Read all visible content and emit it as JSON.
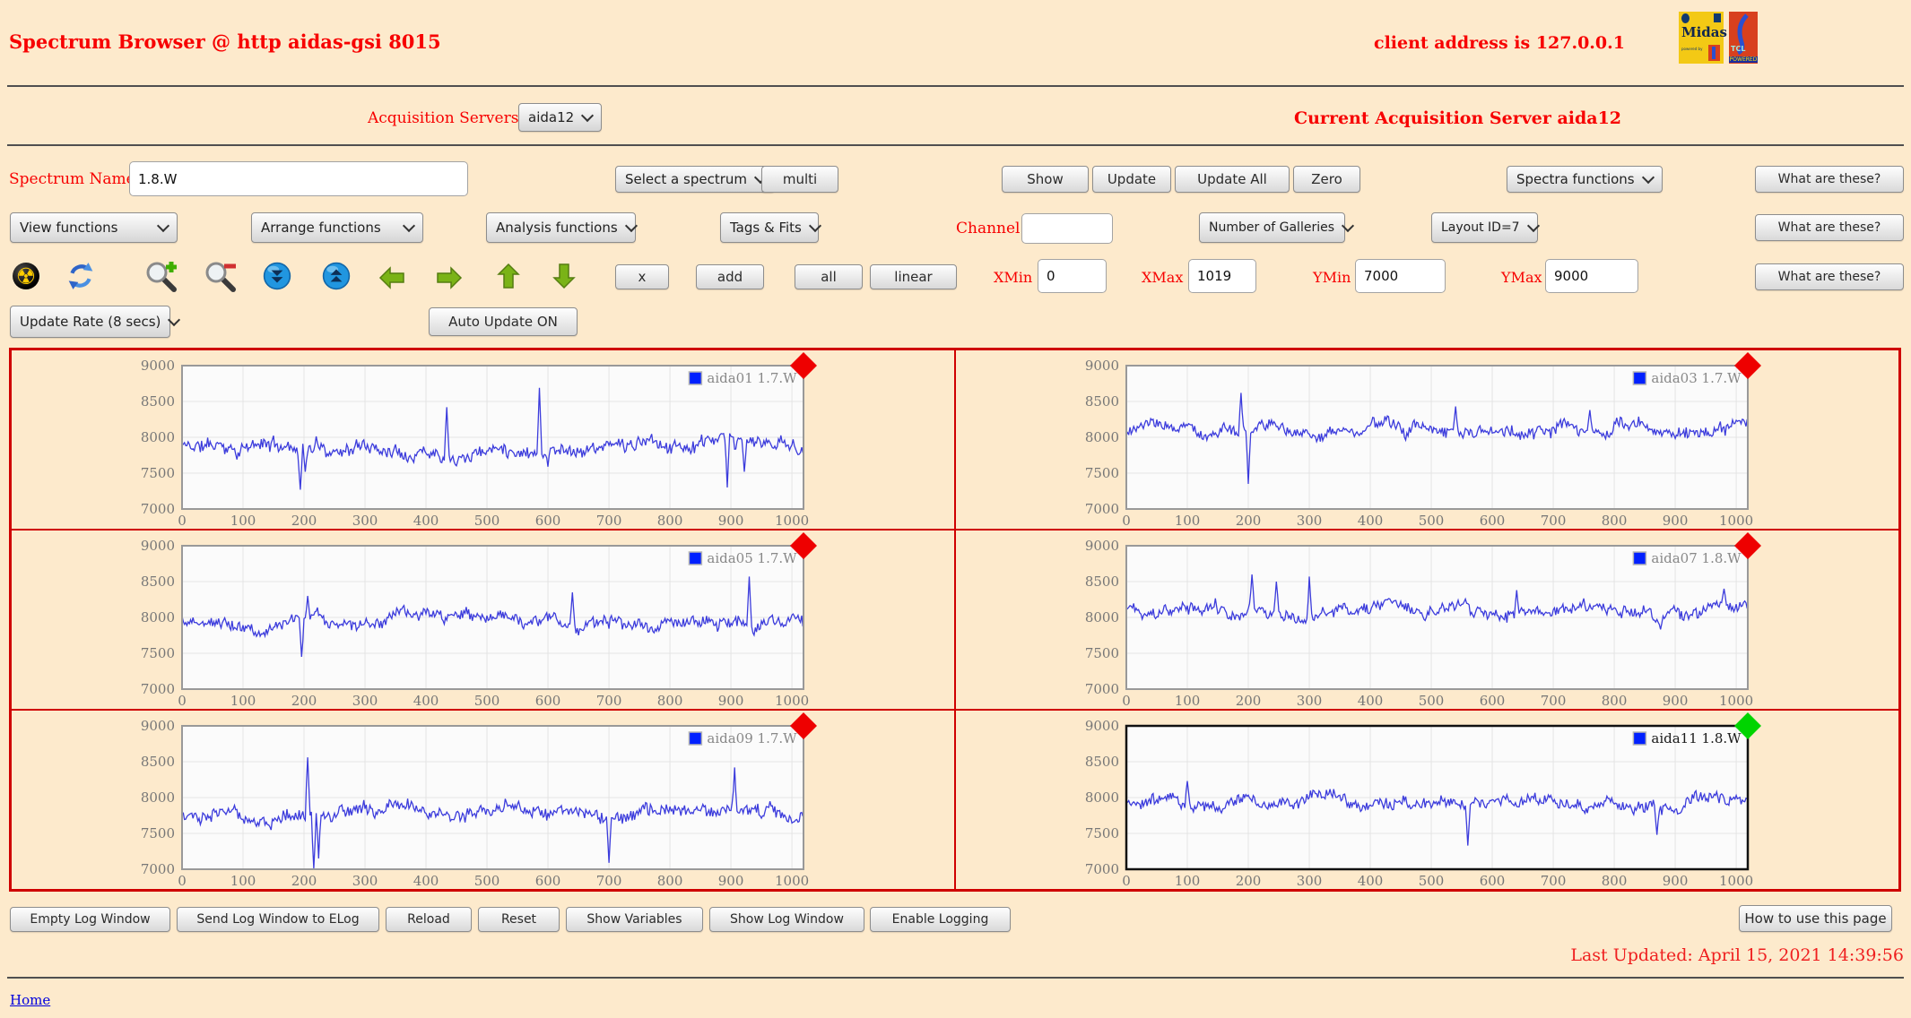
{
  "header": {
    "title": "Spectrum Browser @ http aidas-gsi 8015",
    "client_address": "client address is 127.0.0.1",
    "midas_text": "Midas",
    "midas_sub": "powered by",
    "tcl_text": "TCL",
    "tcl_sub": "POWERED"
  },
  "server_row": {
    "label": "Acquisition Servers",
    "server_select": "aida12",
    "current": "Current Acquisition Server aida12"
  },
  "name_row": {
    "label": "Spectrum Name:",
    "value": "1.8.W",
    "select_spectrum": "Select a spectrum",
    "multi": "multi",
    "show": "Show",
    "update": "Update",
    "update_all": "Update All",
    "zero": "Zero",
    "spectra_functions": "Spectra functions",
    "what": "What are these?"
  },
  "funcs_row": {
    "view": "View functions",
    "arrange": "Arrange functions",
    "analysis": "Analysis functions",
    "tags": "Tags & Fits",
    "channel_label": "Channel:",
    "channel_value": "",
    "galleries": "Number of Galleries",
    "layout": "Layout ID=7",
    "what": "What are these?"
  },
  "icons_row": {
    "icons": [
      "radiation-icon",
      "refresh-icon",
      "zoom-in-icon",
      "zoom-out-icon",
      "scroll-down-icon",
      "scroll-up-icon",
      "arrow-left-icon",
      "arrow-right-icon",
      "arrow-up-icon",
      "arrow-down-icon"
    ],
    "x": "x",
    "add": "add",
    "all": "all",
    "linear": "linear",
    "xmin_label": "XMin",
    "xmin": "0",
    "xmax_label": "XMax",
    "xmax": "1019",
    "ymin_label": "YMin",
    "ymin": "7000",
    "ymax_label": "YMax",
    "ymax": "9000",
    "what": "What are these?"
  },
  "update_row": {
    "rate": "Update Rate (8 secs)",
    "auto": "Auto Update ON"
  },
  "chart_data": [
    {
      "type": "line",
      "legend": "aida01 1.7.W",
      "line_color": "#3c3cdc",
      "marker": "red-diamond",
      "marker_color": "#ee0000",
      "selected": false,
      "xlim": [
        0,
        1019
      ],
      "ylim": [
        7000,
        9000
      ],
      "x_ticks": [
        0,
        100,
        200,
        300,
        400,
        500,
        600,
        700,
        800,
        900,
        1000
      ],
      "y_ticks": [
        7000,
        7500,
        8000,
        8500,
        9000
      ],
      "grid": true,
      "legend_position": "top-right",
      "baseline": 7880,
      "noise": 160,
      "seed": 11,
      "spikes": [
        [
          193,
          7270
        ],
        [
          201,
          7520
        ],
        [
          433,
          8420
        ],
        [
          585,
          8690
        ],
        [
          600,
          7590
        ],
        [
          893,
          7300
        ],
        [
          921,
          7520
        ]
      ]
    },
    {
      "type": "line",
      "legend": "aida03 1.7.W",
      "line_color": "#3c3cdc",
      "marker": "red-diamond",
      "marker_color": "#ee0000",
      "selected": false,
      "xlim": [
        0,
        1019
      ],
      "ylim": [
        7000,
        9000
      ],
      "x_ticks": [
        0,
        100,
        200,
        300,
        400,
        500,
        600,
        700,
        800,
        900,
        1000
      ],
      "y_ticks": [
        7000,
        7500,
        8000,
        8500,
        9000
      ],
      "grid": true,
      "legend_position": "top-right",
      "baseline": 8110,
      "noise": 140,
      "seed": 23,
      "spikes": [
        [
          188,
          8620
        ],
        [
          199,
          7350
        ],
        [
          540,
          8430
        ],
        [
          760,
          8380
        ]
      ]
    },
    {
      "type": "line",
      "legend": "aida05 1.7.W",
      "line_color": "#3c3cdc",
      "marker": "red-diamond",
      "marker_color": "#ee0000",
      "selected": false,
      "xlim": [
        0,
        1019
      ],
      "ylim": [
        7000,
        9000
      ],
      "x_ticks": [
        0,
        100,
        200,
        300,
        400,
        500,
        600,
        700,
        800,
        900,
        1000
      ],
      "y_ticks": [
        7000,
        7500,
        8000,
        8500,
        9000
      ],
      "grid": true,
      "legend_position": "top-right",
      "baseline": 7950,
      "noise": 140,
      "seed": 37,
      "spikes": [
        [
          196,
          7450
        ],
        [
          206,
          8300
        ],
        [
          640,
          8350
        ],
        [
          930,
          8570
        ]
      ]
    },
    {
      "type": "line",
      "legend": "aida07 1.8.W",
      "line_color": "#3c3cdc",
      "marker": "red-diamond",
      "marker_color": "#ee0000",
      "selected": false,
      "xlim": [
        0,
        1019
      ],
      "ylim": [
        7000,
        9000
      ],
      "x_ticks": [
        0,
        100,
        200,
        300,
        400,
        500,
        600,
        700,
        800,
        900,
        1000
      ],
      "y_ticks": [
        7000,
        7500,
        8000,
        8500,
        9000
      ],
      "grid": true,
      "legend_position": "top-right",
      "baseline": 8080,
      "noise": 145,
      "seed": 41,
      "spikes": [
        [
          205,
          8600
        ],
        [
          245,
          8500
        ],
        [
          300,
          8570
        ],
        [
          640,
          8380
        ],
        [
          980,
          8400
        ]
      ]
    },
    {
      "type": "line",
      "legend": "aida09 1.7.W",
      "line_color": "#3c3cdc",
      "marker": "red-diamond",
      "marker_color": "#ee0000",
      "selected": false,
      "xlim": [
        0,
        1019
      ],
      "ylim": [
        7000,
        9000
      ],
      "x_ticks": [
        0,
        100,
        200,
        300,
        400,
        500,
        600,
        700,
        800,
        900,
        1000
      ],
      "y_ticks": [
        7000,
        7500,
        8000,
        8500,
        9000
      ],
      "grid": true,
      "legend_position": "top-right",
      "baseline": 7790,
      "noise": 150,
      "seed": 53,
      "spikes": [
        [
          205,
          8560
        ],
        [
          215,
          7010
        ],
        [
          223,
          7150
        ],
        [
          700,
          7090
        ],
        [
          905,
          8420
        ]
      ]
    },
    {
      "type": "line",
      "legend": "aida11 1.8.W",
      "line_color": "#3c3cdc",
      "marker": "green-diamond",
      "marker_color": "#00d400",
      "selected": true,
      "xlim": [
        0,
        1019
      ],
      "ylim": [
        7000,
        9000
      ],
      "x_ticks": [
        0,
        100,
        200,
        300,
        400,
        500,
        600,
        700,
        800,
        900,
        1000
      ],
      "y_ticks": [
        7000,
        7500,
        8000,
        8500,
        9000
      ],
      "grid": true,
      "legend_position": "top-right",
      "baseline": 7900,
      "noise": 140,
      "seed": 67,
      "spikes": [
        [
          100,
          8230
        ],
        [
          560,
          7330
        ],
        [
          870,
          7480
        ]
      ]
    }
  ],
  "log_row": {
    "buttons": [
      "Empty Log Window",
      "Send Log Window to ELog",
      "Reload",
      "Reset",
      "Show Variables",
      "Show Log Window",
      "Enable Logging"
    ],
    "how": "How to use this page"
  },
  "footer": {
    "last_updated": "Last Updated: April 15, 2021 14:39:56",
    "home": "Home"
  }
}
